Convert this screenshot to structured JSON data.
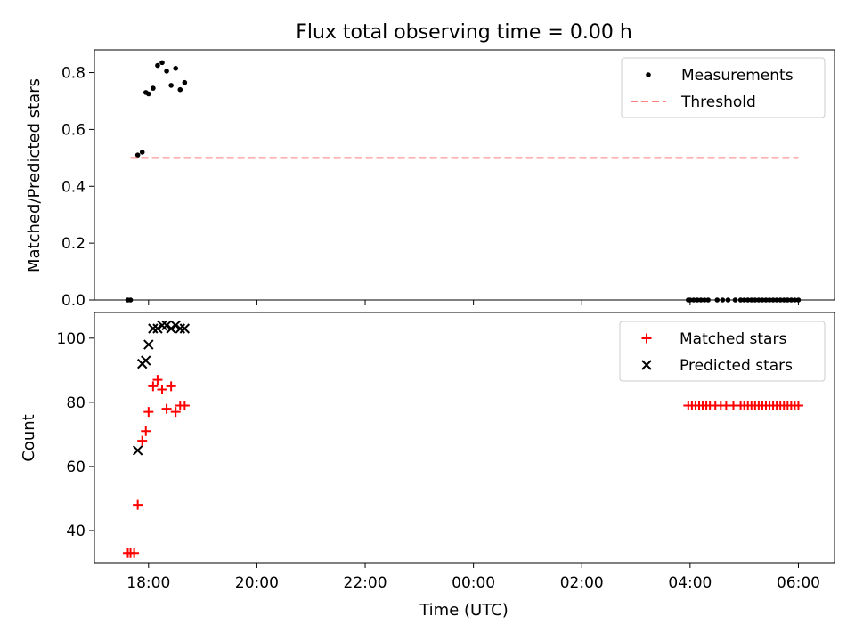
{
  "title": "Flux total observing time = 0.00 h",
  "chart_data": [
    {
      "type": "scatter",
      "panel": "top",
      "title": "Flux total observing time = 0.00 h",
      "ylabel": "Matched/Predicted stars",
      "xlabel": "",
      "xlim": [
        "17:00",
        "06:40"
      ],
      "ylim": [
        0.0,
        0.88
      ],
      "x_ticks": [
        "18:00",
        "20:00",
        "22:00",
        "00:00",
        "02:00",
        "04:00",
        "06:00"
      ],
      "y_ticks": [
        "0.0",
        "0.2",
        "0.4",
        "0.6",
        "0.8"
      ],
      "y_tick_values": [
        0.0,
        0.2,
        0.4,
        0.6,
        0.8
      ],
      "legend_position": "upper right",
      "series": [
        {
          "name": "Measurements",
          "kind": "scatter",
          "marker": "dot",
          "color": "#000000",
          "x": [
            "17:37",
            "17:40",
            "17:48",
            "17:53",
            "17:57",
            "18:00",
            "18:05",
            "18:10",
            "18:15",
            "18:20",
            "18:25",
            "18:30",
            "18:35",
            "18:40",
            "03:58",
            "04:00",
            "04:04",
            "04:08",
            "04:12",
            "04:16",
            "04:20",
            "04:30",
            "04:36",
            "04:42",
            "04:50",
            "04:56",
            "05:00",
            "05:04",
            "05:08",
            "05:12",
            "05:16",
            "05:20",
            "05:24",
            "05:28",
            "05:32",
            "05:36",
            "05:40",
            "05:44",
            "05:48",
            "05:52",
            "05:56",
            "06:00"
          ],
          "y": [
            0.0,
            0.0,
            0.51,
            0.52,
            0.73,
            0.725,
            0.745,
            0.825,
            0.835,
            0.805,
            0.755,
            0.815,
            0.74,
            0.765,
            0.0,
            0.0,
            0.0,
            0.0,
            0.0,
            0.0,
            0.0,
            0.0,
            0.0,
            0.0,
            0.0,
            0.0,
            0.0,
            0.0,
            0.0,
            0.0,
            0.0,
            0.0,
            0.0,
            0.0,
            0.0,
            0.0,
            0.0,
            0.0,
            0.0,
            0.0,
            0.0,
            0.0
          ]
        },
        {
          "name": "Threshold",
          "kind": "line",
          "style": "dashed",
          "color": "#ff7f7f",
          "x": [
            "17:40",
            "06:00"
          ],
          "y": [
            0.5,
            0.5
          ]
        }
      ]
    },
    {
      "type": "scatter",
      "panel": "bottom",
      "xlabel": "Time (UTC)",
      "ylabel": "Count",
      "xlim": [
        "17:00",
        "06:40"
      ],
      "ylim": [
        30,
        108
      ],
      "x_ticks": [
        "18:00",
        "20:00",
        "22:00",
        "00:00",
        "02:00",
        "04:00",
        "06:00"
      ],
      "y_ticks": [
        "40",
        "60",
        "80",
        "100"
      ],
      "y_tick_values": [
        40,
        60,
        80,
        100
      ],
      "legend_position": "upper right",
      "series": [
        {
          "name": "Matched stars",
          "kind": "scatter",
          "marker": "plus",
          "color": "#ff0000",
          "x": [
            "17:37",
            "17:40",
            "17:44",
            "17:48",
            "17:53",
            "17:57",
            "18:00",
            "18:05",
            "18:10",
            "18:15",
            "18:20",
            "18:25",
            "18:30",
            "18:35",
            "18:40",
            "03:58",
            "04:02",
            "04:06",
            "04:10",
            "04:14",
            "04:18",
            "04:22",
            "04:28",
            "04:34",
            "04:40",
            "04:48",
            "04:56",
            "05:00",
            "05:04",
            "05:08",
            "05:12",
            "05:16",
            "05:20",
            "05:24",
            "05:28",
            "05:32",
            "05:36",
            "05:40",
            "05:44",
            "05:48",
            "05:52",
            "05:56",
            "06:00"
          ],
          "y": [
            33,
            33,
            33,
            48,
            68,
            71,
            77,
            85,
            87,
            84,
            78,
            85,
            77,
            79,
            79,
            79,
            79,
            79,
            79,
            79,
            79,
            79,
            79,
            79,
            79,
            79,
            79,
            79,
            79,
            79,
            79,
            79,
            79,
            79,
            79,
            79,
            79,
            79,
            79,
            79,
            79,
            79,
            79
          ]
        },
        {
          "name": "Predicted stars",
          "kind": "scatter",
          "marker": "x",
          "color": "#000000",
          "x": [
            "17:48",
            "17:53",
            "17:57",
            "18:00",
            "18:05",
            "18:10",
            "18:15",
            "18:20",
            "18:25",
            "18:30",
            "18:35",
            "18:40"
          ],
          "y": [
            65,
            92,
            93,
            98,
            103,
            103,
            104,
            104,
            103,
            104,
            103,
            103
          ]
        }
      ]
    }
  ]
}
